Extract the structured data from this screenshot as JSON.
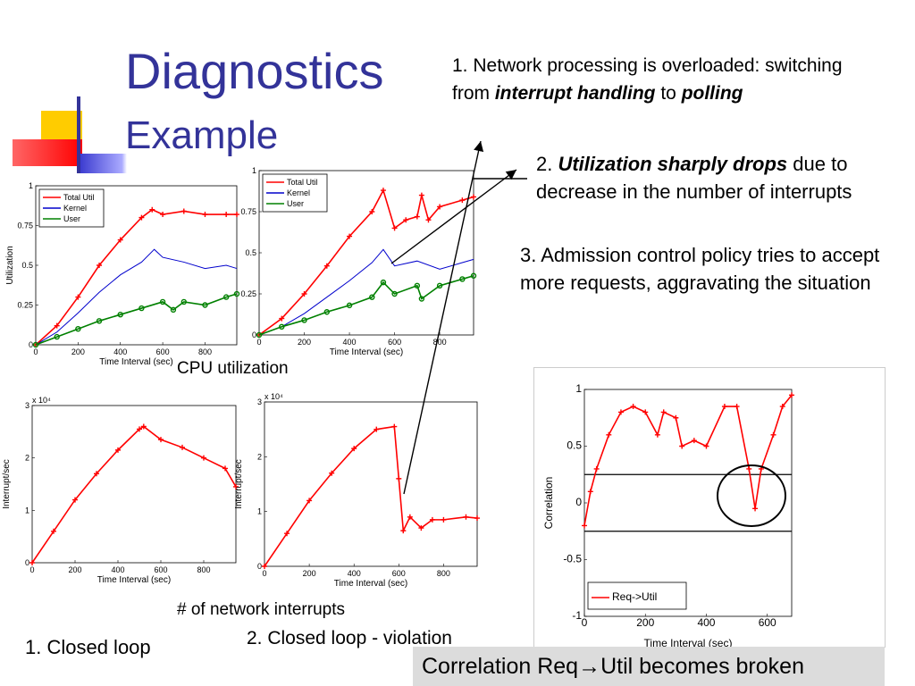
{
  "title": "Diagnostics",
  "subtitle": "Example",
  "annotations": {
    "a1_prefix": "1. Network processing is overloaded: switching from ",
    "a1_em": "interrupt handling",
    "a1_mid": " to ",
    "a1_em2": "polling",
    "a2_prefix": "2. ",
    "a2_em": "Utilization sharply drops",
    "a2_rest": " due to decrease in the number of interrupts",
    "a3": "3. Admission control policy tries to accept more requests, aggravating the situation"
  },
  "captions": {
    "cpu": "CPU utilization",
    "net": "# of network interrupts",
    "closed_loop": "1. Closed loop",
    "violation": "2. Closed loop - violation",
    "correlation": "Correlation Req→Util becomes broken"
  },
  "colors": {
    "title": "#333399",
    "red": "#ff0000",
    "blue": "#0000cc",
    "green": "#008000"
  },
  "chart_data": [
    {
      "type": "line",
      "xlabel": "Time Interval (sec)",
      "ylabel": "Utilization",
      "xlim": [
        0,
        950
      ],
      "ylim": [
        0,
        1
      ],
      "xticks": [
        0,
        200,
        400,
        600,
        800
      ],
      "yticks": [
        0,
        0.25,
        0.5,
        0.75,
        1
      ],
      "legend": "top-left",
      "series": [
        {
          "name": "Total Util",
          "color": "#ff0000",
          "marker": "+",
          "x": [
            0,
            100,
            200,
            300,
            400,
            500,
            550,
            600,
            700,
            800,
            900,
            950
          ],
          "y": [
            0,
            0.12,
            0.3,
            0.5,
            0.66,
            0.8,
            0.85,
            0.82,
            0.84,
            0.82,
            0.82,
            0.82
          ]
        },
        {
          "name": "Kernel",
          "color": "#0000cc",
          "x": [
            0,
            100,
            200,
            300,
            400,
            500,
            560,
            600,
            700,
            800,
            900,
            950
          ],
          "y": [
            0,
            0.08,
            0.2,
            0.33,
            0.44,
            0.52,
            0.6,
            0.55,
            0.52,
            0.48,
            0.5,
            0.48
          ]
        },
        {
          "name": "User",
          "color": "#008000",
          "marker": "o",
          "x": [
            0,
            100,
            200,
            300,
            400,
            500,
            600,
            650,
            700,
            800,
            900,
            950
          ],
          "y": [
            0,
            0.05,
            0.1,
            0.15,
            0.19,
            0.23,
            0.27,
            0.22,
            0.27,
            0.25,
            0.3,
            0.32
          ]
        }
      ]
    },
    {
      "type": "line",
      "xlabel": "Time Interval (sec)",
      "ylabel": "",
      "xlim": [
        0,
        950
      ],
      "ylim": [
        0,
        1
      ],
      "xticks": [
        0,
        200,
        400,
        600,
        800
      ],
      "yticks": [
        0,
        0.25,
        0.5,
        0.75,
        1
      ],
      "legend": "top-left",
      "series": [
        {
          "name": "Total Util",
          "color": "#ff0000",
          "marker": "+",
          "x": [
            0,
            100,
            200,
            300,
            400,
            500,
            550,
            600,
            650,
            700,
            720,
            750,
            800,
            900,
            950
          ],
          "y": [
            0,
            0.1,
            0.25,
            0.42,
            0.6,
            0.75,
            0.88,
            0.65,
            0.7,
            0.72,
            0.85,
            0.7,
            0.78,
            0.82,
            0.84
          ]
        },
        {
          "name": "Kernel",
          "color": "#0000cc",
          "x": [
            0,
            100,
            200,
            300,
            400,
            500,
            550,
            600,
            700,
            800,
            900,
            950
          ],
          "y": [
            0,
            0.05,
            0.13,
            0.23,
            0.33,
            0.44,
            0.52,
            0.42,
            0.45,
            0.4,
            0.44,
            0.46
          ]
        },
        {
          "name": "User",
          "color": "#008000",
          "marker": "o",
          "x": [
            0,
            100,
            200,
            300,
            400,
            500,
            550,
            600,
            700,
            720,
            800,
            900,
            950
          ],
          "y": [
            0,
            0.05,
            0.09,
            0.14,
            0.18,
            0.23,
            0.32,
            0.25,
            0.3,
            0.22,
            0.3,
            0.34,
            0.36
          ]
        }
      ]
    },
    {
      "type": "line",
      "xlabel": "Time Interval (sec)",
      "ylabel": "Interrupt/sec",
      "scale_label": "x 10⁴",
      "xlim": [
        0,
        950
      ],
      "ylim": [
        0,
        3
      ],
      "xticks": [
        0,
        200,
        400,
        600,
        800
      ],
      "yticks": [
        0,
        1,
        2,
        3
      ],
      "series": [
        {
          "name": "",
          "color": "#ff0000",
          "marker": "+",
          "x": [
            0,
            100,
            200,
            300,
            400,
            500,
            520,
            600,
            700,
            800,
            900,
            950
          ],
          "y": [
            0,
            0.6,
            1.2,
            1.7,
            2.15,
            2.55,
            2.6,
            2.35,
            2.2,
            2.0,
            1.8,
            1.45
          ]
        }
      ]
    },
    {
      "type": "line",
      "xlabel": "Time Interval (sec)",
      "ylabel": "Interrupt/sec",
      "scale_label": "x 10⁴",
      "xlim": [
        0,
        950
      ],
      "ylim": [
        0,
        3
      ],
      "xticks": [
        0,
        200,
        400,
        600,
        800
      ],
      "yticks": [
        0,
        1,
        2,
        3
      ],
      "series": [
        {
          "name": "",
          "color": "#ff0000",
          "marker": "+",
          "x": [
            0,
            100,
            200,
            300,
            400,
            500,
            580,
            600,
            620,
            650,
            700,
            750,
            800,
            900,
            950
          ],
          "y": [
            0,
            0.6,
            1.2,
            1.7,
            2.15,
            2.5,
            2.55,
            1.6,
            0.65,
            0.9,
            0.7,
            0.85,
            0.85,
            0.9,
            0.88
          ]
        }
      ]
    },
    {
      "type": "line",
      "xlabel": "Time Interval (sec)",
      "ylabel": "Correlation",
      "xlim": [
        0,
        680
      ],
      "ylim": [
        -1,
        1
      ],
      "xticks": [
        0,
        200,
        400,
        600
      ],
      "yticks": [
        -1,
        -0.5,
        0,
        0.5,
        1
      ],
      "hlines": [
        0.25,
        -0.25
      ],
      "legend": "bottom-left",
      "series": [
        {
          "name": "Req->Util",
          "color": "#ff0000",
          "marker": "+",
          "x": [
            0,
            20,
            40,
            80,
            120,
            160,
            200,
            240,
            260,
            300,
            320,
            360,
            400,
            460,
            500,
            540,
            560,
            580,
            620,
            650,
            680
          ],
          "y": [
            -0.2,
            0.1,
            0.3,
            0.6,
            0.8,
            0.85,
            0.8,
            0.6,
            0.8,
            0.75,
            0.5,
            0.55,
            0.5,
            0.85,
            0.85,
            0.3,
            -0.05,
            0.3,
            0.6,
            0.85,
            0.95
          ]
        }
      ]
    }
  ]
}
